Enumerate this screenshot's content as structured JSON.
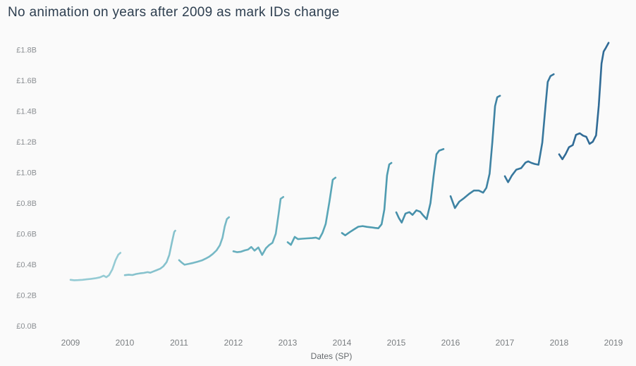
{
  "chart_data": {
    "type": "line",
    "title": "No animation on years after 2009 as mark IDs change",
    "xlabel": "Dates (SP)",
    "ylabel": "",
    "x_unit": "year",
    "y_unit": "GBP billions",
    "xlim": [
      2009,
      2019
    ],
    "ylim": [
      0,
      1.8
    ],
    "grid": false,
    "legend": false,
    "x_ticks": [
      {
        "value": 2009,
        "label": "2009"
      },
      {
        "value": 2010,
        "label": "2010"
      },
      {
        "value": 2011,
        "label": "2011"
      },
      {
        "value": 2012,
        "label": "2012"
      },
      {
        "value": 2013,
        "label": "2013"
      },
      {
        "value": 2014,
        "label": "2014"
      },
      {
        "value": 2015,
        "label": "2015"
      },
      {
        "value": 2016,
        "label": "2016"
      },
      {
        "value": 2017,
        "label": "2017"
      },
      {
        "value": 2018,
        "label": "2018"
      },
      {
        "value": 2019,
        "label": "2019"
      }
    ],
    "y_ticks": [
      {
        "value": 0.0,
        "label": "£0.0B"
      },
      {
        "value": 0.2,
        "label": "£0.2B"
      },
      {
        "value": 0.4,
        "label": "£0.4B"
      },
      {
        "value": 0.6,
        "label": "£0.6B"
      },
      {
        "value": 0.8,
        "label": "£0.8B"
      },
      {
        "value": 1.0,
        "label": "£1.0B"
      },
      {
        "value": 1.2,
        "label": "£1.2B"
      },
      {
        "value": 1.4,
        "label": "£1.4B"
      },
      {
        "value": 1.6,
        "label": "£1.6B"
      },
      {
        "value": 1.8,
        "label": "£1.8B"
      }
    ],
    "series": [
      {
        "name": "2009",
        "color": "#95cbd4",
        "points": [
          [
            2009.0,
            0.3
          ],
          [
            2009.07,
            0.297
          ],
          [
            2009.14,
            0.298
          ],
          [
            2009.22,
            0.3
          ],
          [
            2009.3,
            0.303
          ],
          [
            2009.38,
            0.306
          ],
          [
            2009.46,
            0.31
          ],
          [
            2009.54,
            0.316
          ],
          [
            2009.61,
            0.327
          ],
          [
            2009.66,
            0.317
          ],
          [
            2009.71,
            0.33
          ],
          [
            2009.77,
            0.368
          ],
          [
            2009.83,
            0.428
          ],
          [
            2009.88,
            0.464
          ],
          [
            2009.92,
            0.476
          ]
        ]
      },
      {
        "name": "2010",
        "color": "#86c2cd",
        "points": [
          [
            2010.0,
            0.33
          ],
          [
            2010.07,
            0.333
          ],
          [
            2010.14,
            0.331
          ],
          [
            2010.21,
            0.338
          ],
          [
            2010.28,
            0.342
          ],
          [
            2010.35,
            0.345
          ],
          [
            2010.42,
            0.35
          ],
          [
            2010.47,
            0.346
          ],
          [
            2010.53,
            0.355
          ],
          [
            2010.59,
            0.363
          ],
          [
            2010.65,
            0.372
          ],
          [
            2010.71,
            0.388
          ],
          [
            2010.77,
            0.415
          ],
          [
            2010.82,
            0.462
          ],
          [
            2010.87,
            0.548
          ],
          [
            2010.91,
            0.612
          ],
          [
            2010.93,
            0.62
          ]
        ]
      },
      {
        "name": "2011",
        "color": "#77b9c6",
        "points": [
          [
            2011.0,
            0.428
          ],
          [
            2011.05,
            0.412
          ],
          [
            2011.1,
            0.398
          ],
          [
            2011.18,
            0.404
          ],
          [
            2011.26,
            0.41
          ],
          [
            2011.34,
            0.418
          ],
          [
            2011.42,
            0.426
          ],
          [
            2011.49,
            0.438
          ],
          [
            2011.56,
            0.452
          ],
          [
            2011.62,
            0.468
          ],
          [
            2011.69,
            0.492
          ],
          [
            2011.75,
            0.525
          ],
          [
            2011.8,
            0.575
          ],
          [
            2011.84,
            0.648
          ],
          [
            2011.88,
            0.696
          ],
          [
            2011.92,
            0.708
          ]
        ]
      },
      {
        "name": "2012",
        "color": "#68afbe",
        "points": [
          [
            2012.0,
            0.486
          ],
          [
            2012.07,
            0.48
          ],
          [
            2012.14,
            0.483
          ],
          [
            2012.21,
            0.492
          ],
          [
            2012.27,
            0.497
          ],
          [
            2012.33,
            0.514
          ],
          [
            2012.39,
            0.49
          ],
          [
            2012.46,
            0.511
          ],
          [
            2012.53,
            0.462
          ],
          [
            2012.6,
            0.506
          ],
          [
            2012.66,
            0.527
          ],
          [
            2012.72,
            0.541
          ],
          [
            2012.78,
            0.6
          ],
          [
            2012.83,
            0.722
          ],
          [
            2012.87,
            0.828
          ],
          [
            2012.92,
            0.84
          ]
        ]
      },
      {
        "name": "2013",
        "color": "#59a6b7",
        "points": [
          [
            2013.0,
            0.545
          ],
          [
            2013.06,
            0.528
          ],
          [
            2013.13,
            0.58
          ],
          [
            2013.19,
            0.565
          ],
          [
            2013.27,
            0.568
          ],
          [
            2013.36,
            0.57
          ],
          [
            2013.45,
            0.572
          ],
          [
            2013.52,
            0.575
          ],
          [
            2013.58,
            0.566
          ],
          [
            2013.64,
            0.605
          ],
          [
            2013.7,
            0.664
          ],
          [
            2013.77,
            0.812
          ],
          [
            2013.83,
            0.952
          ],
          [
            2013.88,
            0.966
          ]
        ]
      },
      {
        "name": "2014",
        "color": "#4e9bb0",
        "points": [
          [
            2014.0,
            0.605
          ],
          [
            2014.06,
            0.59
          ],
          [
            2014.14,
            0.61
          ],
          [
            2014.22,
            0.628
          ],
          [
            2014.3,
            0.646
          ],
          [
            2014.38,
            0.65
          ],
          [
            2014.46,
            0.645
          ],
          [
            2014.54,
            0.642
          ],
          [
            2014.61,
            0.638
          ],
          [
            2014.67,
            0.636
          ],
          [
            2014.73,
            0.662
          ],
          [
            2014.78,
            0.758
          ],
          [
            2014.83,
            0.98
          ],
          [
            2014.87,
            1.052
          ],
          [
            2014.91,
            1.062
          ]
        ]
      },
      {
        "name": "2015",
        "color": "#468faa",
        "points": [
          [
            2015.0,
            0.74
          ],
          [
            2015.05,
            0.702
          ],
          [
            2015.1,
            0.673
          ],
          [
            2015.17,
            0.732
          ],
          [
            2015.24,
            0.741
          ],
          [
            2015.3,
            0.723
          ],
          [
            2015.37,
            0.753
          ],
          [
            2015.44,
            0.744
          ],
          [
            2015.5,
            0.718
          ],
          [
            2015.56,
            0.695
          ],
          [
            2015.63,
            0.8
          ],
          [
            2015.69,
            0.982
          ],
          [
            2015.74,
            1.118
          ],
          [
            2015.79,
            1.142
          ],
          [
            2015.87,
            1.152
          ]
        ]
      },
      {
        "name": "2016",
        "color": "#3f83a3",
        "points": [
          [
            2016.0,
            0.845
          ],
          [
            2016.08,
            0.768
          ],
          [
            2016.16,
            0.809
          ],
          [
            2016.25,
            0.833
          ],
          [
            2016.34,
            0.86
          ],
          [
            2016.43,
            0.882
          ],
          [
            2016.52,
            0.882
          ],
          [
            2016.6,
            0.868
          ],
          [
            2016.66,
            0.9
          ],
          [
            2016.72,
            0.992
          ],
          [
            2016.77,
            1.2
          ],
          [
            2016.82,
            1.432
          ],
          [
            2016.86,
            1.49
          ],
          [
            2016.91,
            1.5
          ]
        ]
      },
      {
        "name": "2017",
        "color": "#37779d",
        "points": [
          [
            2017.0,
            0.975
          ],
          [
            2017.06,
            0.936
          ],
          [
            2017.13,
            0.98
          ],
          [
            2017.21,
            1.018
          ],
          [
            2017.3,
            1.028
          ],
          [
            2017.38,
            1.064
          ],
          [
            2017.43,
            1.072
          ],
          [
            2017.49,
            1.062
          ],
          [
            2017.55,
            1.055
          ],
          [
            2017.62,
            1.05
          ],
          [
            2017.69,
            1.195
          ],
          [
            2017.75,
            1.44
          ],
          [
            2017.79,
            1.59
          ],
          [
            2017.84,
            1.628
          ],
          [
            2017.9,
            1.64
          ]
        ]
      },
      {
        "name": "2018",
        "color": "#306b96",
        "points": [
          [
            2018.0,
            1.118
          ],
          [
            2018.06,
            1.086
          ],
          [
            2018.12,
            1.12
          ],
          [
            2018.18,
            1.164
          ],
          [
            2018.25,
            1.178
          ],
          [
            2018.31,
            1.245
          ],
          [
            2018.38,
            1.255
          ],
          [
            2018.44,
            1.24
          ],
          [
            2018.5,
            1.232
          ],
          [
            2018.56,
            1.186
          ],
          [
            2018.62,
            1.2
          ],
          [
            2018.68,
            1.242
          ],
          [
            2018.73,
            1.436
          ],
          [
            2018.78,
            1.71
          ],
          [
            2018.82,
            1.788
          ],
          [
            2018.86,
            1.812
          ],
          [
            2018.91,
            1.845
          ]
        ]
      }
    ]
  },
  "colors": {
    "background": "#fafafa",
    "title_text": "#2e3f50",
    "y_tick_text": "#8b8f93",
    "x_tick_text": "#7a7e81",
    "axis_title_text": "#666a6d"
  }
}
